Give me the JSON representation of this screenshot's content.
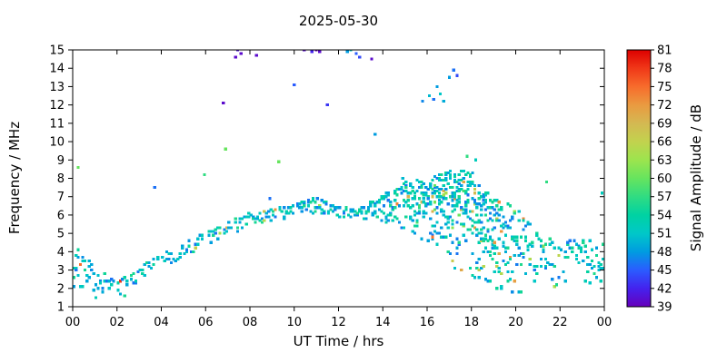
{
  "chart_data": {
    "type": "scatter",
    "title": "2025-05-30",
    "xlabel": "UT Time / hrs",
    "ylabel": "Frequency / MHz",
    "xlim": [
      0,
      24
    ],
    "ylim": [
      1,
      15
    ],
    "grid": false,
    "xticks": {
      "values": [
        0,
        2,
        4,
        6,
        8,
        10,
        12,
        14,
        16,
        18,
        20,
        22,
        24
      ],
      "labels": [
        "00",
        "02",
        "04",
        "06",
        "08",
        "10",
        "12",
        "14",
        "16",
        "18",
        "20",
        "22",
        "00"
      ]
    },
    "yticks": [
      1,
      2,
      3,
      4,
      5,
      6,
      7,
      8,
      9,
      10,
      11,
      12,
      13,
      14,
      15
    ],
    "colorbar": {
      "label": "Signal Amplitude / dB",
      "min": 39,
      "max": 81,
      "ticks": [
        39,
        42,
        45,
        48,
        51,
        54,
        57,
        60,
        63,
        66,
        69,
        72,
        75,
        78,
        81
      ],
      "stops": [
        {
          "v": 39,
          "c": "#6600bb"
        },
        {
          "v": 42,
          "c": "#4422ee"
        },
        {
          "v": 45,
          "c": "#2a5cff"
        },
        {
          "v": 48,
          "c": "#009ce0"
        },
        {
          "v": 51,
          "c": "#00c8c8"
        },
        {
          "v": 54,
          "c": "#00d2a2"
        },
        {
          "v": 57,
          "c": "#30dc82"
        },
        {
          "v": 60,
          "c": "#66e45e"
        },
        {
          "v": 63,
          "c": "#9ce44e"
        },
        {
          "v": 66,
          "c": "#c2d24e"
        },
        {
          "v": 69,
          "c": "#d4b852"
        },
        {
          "v": 72,
          "c": "#ea9a40"
        },
        {
          "v": 75,
          "c": "#f76c2c"
        },
        {
          "v": 78,
          "c": "#f03818"
        },
        {
          "v": 81,
          "c": "#dd0000"
        }
      ]
    },
    "trace_envelope": {
      "description": "Ionospheric echo trace: frequency band (MHz) of detected signal vs UT hour, with relative point density per 0.1 h step and typical amplitude 46-56 dB (occasional 60-74 dB hot points, mostly 15-20 UT).",
      "hours": [
        0,
        1,
        2,
        3,
        4,
        5,
        6,
        7,
        8,
        9,
        10,
        11,
        12,
        13,
        14,
        15,
        16,
        17,
        18,
        19,
        20,
        21,
        22,
        23,
        24
      ],
      "f_low": [
        1.5,
        1.3,
        1.3,
        1.9,
        2.8,
        3.6,
        4.2,
        4.8,
        5.3,
        5.6,
        5.9,
        6.1,
        5.8,
        5.7,
        5.5,
        5.0,
        4.2,
        3.2,
        2.4,
        2.0,
        1.6,
        1.8,
        1.8,
        1.8,
        2.0
      ],
      "f_high": [
        4.4,
        3.2,
        2.4,
        3.1,
        3.9,
        4.5,
        5.1,
        5.6,
        6.1,
        6.3,
        6.6,
        7.0,
        6.5,
        6.4,
        7.2,
        7.8,
        8.0,
        8.4,
        8.5,
        7.0,
        6.4,
        5.0,
        4.6,
        4.6,
        4.7
      ],
      "density": [
        3,
        2,
        1.6,
        1.6,
        1.6,
        1.8,
        2,
        2,
        2.2,
        2.2,
        2.6,
        3,
        2.6,
        2.6,
        4,
        6,
        9,
        12,
        12,
        9,
        6,
        3.5,
        3,
        3,
        3
      ]
    },
    "amp_base_range": [
      46,
      56
    ],
    "outliers": [
      [
        0.25,
        8.6,
        60
      ],
      [
        3.7,
        7.5,
        46
      ],
      [
        5.95,
        8.2,
        57
      ],
      [
        6.8,
        12.1,
        40
      ],
      [
        6.9,
        9.6,
        60
      ],
      [
        7.35,
        14.6,
        40
      ],
      [
        7.45,
        15.0,
        41
      ],
      [
        7.6,
        14.8,
        40
      ],
      [
        8.3,
        14.7,
        40
      ],
      [
        8.9,
        6.9,
        46
      ],
      [
        9.3,
        8.9,
        60
      ],
      [
        10.0,
        13.1,
        45
      ],
      [
        10.45,
        15.0,
        40
      ],
      [
        10.8,
        14.9,
        42
      ],
      [
        11.0,
        15.0,
        39
      ],
      [
        11.15,
        14.9,
        40
      ],
      [
        11.5,
        12.0,
        43
      ],
      [
        12.4,
        14.9,
        48
      ],
      [
        12.55,
        15.0,
        51
      ],
      [
        12.8,
        14.8,
        45
      ],
      [
        12.95,
        14.6,
        44
      ],
      [
        13.5,
        14.5,
        40
      ],
      [
        13.65,
        10.4,
        48
      ],
      [
        14.9,
        8.0,
        50
      ],
      [
        15.8,
        12.2,
        47
      ],
      [
        16.1,
        12.5,
        50
      ],
      [
        16.3,
        12.3,
        46
      ],
      [
        16.45,
        13.0,
        48
      ],
      [
        16.6,
        12.6,
        51
      ],
      [
        16.75,
        12.2,
        49
      ],
      [
        17.0,
        13.5,
        48
      ],
      [
        17.2,
        13.9,
        46
      ],
      [
        17.35,
        13.6,
        44
      ],
      [
        17.8,
        9.2,
        57
      ],
      [
        18.2,
        9.0,
        52
      ],
      [
        21.4,
        7.8,
        57
      ],
      [
        23.9,
        7.2,
        52
      ]
    ]
  }
}
